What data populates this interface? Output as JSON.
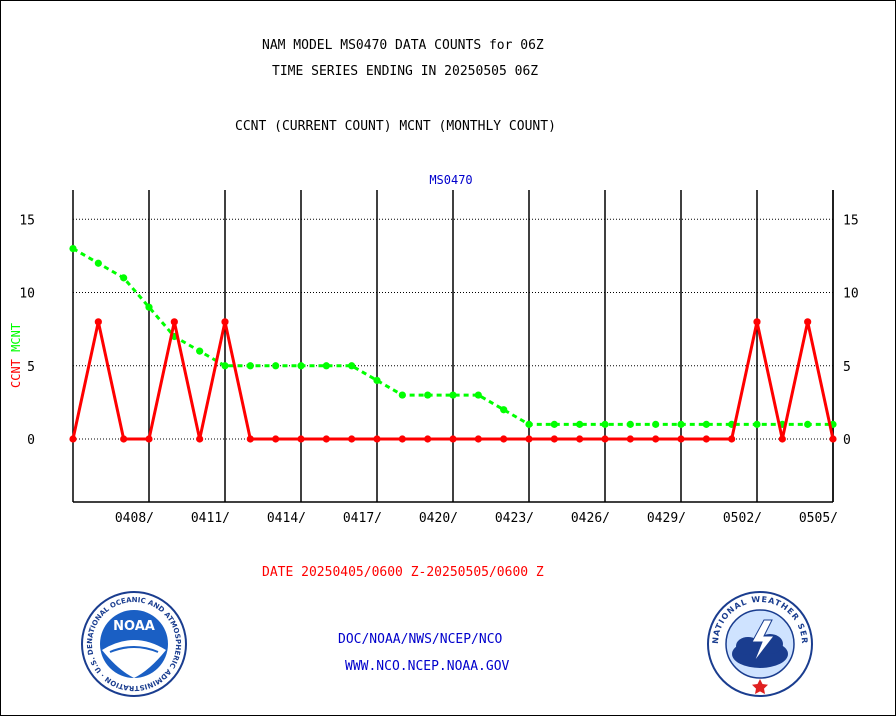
{
  "header": {
    "line1": "NAM MODEL MS0470 DATA COUNTS for 06Z",
    "line2": "TIME SERIES ENDING IN 20250505 06Z",
    "line3": "CCNT (CURRENT COUNT) MCNT (MONTHLY COUNT)"
  },
  "footer": {
    "date_range": "DATE 20250405/0600 Z-20250505/0600 Z",
    "org_path": "DOC/NOAA/NWS/NCEP/NCO",
    "website": "WWW.NCO.NCEP.NOAA.GOV"
  },
  "logos": {
    "noaa_text": "NOAA",
    "noaa_ring": "NATIONAL OCEANIC AND ATMOSPHERIC ADMINISTRATION · U.S. DEPARTMENT OF COMMERCE ·",
    "nws_ring": "NATIONAL WEATHER SERVICE"
  },
  "colors": {
    "ccnt": "#ff0000",
    "mcnt": "#00ff00",
    "station": "#0000cc",
    "footer_date": "#ff0000",
    "footer_links": "#0000cc"
  },
  "chart_data": {
    "type": "line",
    "title": "MS0470",
    "ylabel_series": [
      "CCNT",
      "MCNT"
    ],
    "ylim": [
      -4.3,
      17
    ],
    "yticks": [
      0,
      5,
      10,
      15
    ],
    "xlim": [
      0,
      30
    ],
    "x_tick_labels": [
      "0408/",
      "0411/",
      "0414/",
      "0417/",
      "0420/",
      "0423/",
      "0426/",
      "0429/",
      "0502/",
      "0505/"
    ],
    "x_tick_days": [
      3,
      6,
      9,
      12,
      15,
      18,
      21,
      24,
      27,
      30
    ],
    "grid": true,
    "series": [
      {
        "name": "CCNT",
        "style": "solid",
        "x": [
          0,
          1,
          2,
          3,
          4,
          5,
          6,
          7,
          8,
          9,
          10,
          11,
          12,
          13,
          14,
          15,
          16,
          17,
          18,
          19,
          20,
          21,
          22,
          23,
          24,
          25,
          26,
          27,
          28,
          29,
          30
        ],
        "values": [
          0,
          8,
          0,
          0,
          8,
          0,
          8,
          0,
          0,
          0,
          0,
          0,
          0,
          0,
          0,
          0,
          0,
          0,
          0,
          0,
          0,
          0,
          0,
          0,
          0,
          0,
          0,
          8,
          0,
          8,
          0
        ]
      },
      {
        "name": "MCNT",
        "style": "dashed",
        "x": [
          0,
          1,
          2,
          3,
          4,
          5,
          6,
          7,
          8,
          9,
          10,
          11,
          12,
          13,
          14,
          15,
          16,
          17,
          18,
          19,
          20,
          21,
          22,
          23,
          24,
          25,
          26,
          27,
          28,
          29,
          30
        ],
        "values": [
          13,
          12,
          11,
          9,
          7,
          6,
          5,
          5,
          5,
          5,
          5,
          5,
          4,
          3,
          3,
          3,
          3,
          2,
          1,
          1,
          1,
          1,
          1,
          1,
          1,
          1,
          1,
          1,
          1,
          1,
          1
        ]
      }
    ]
  }
}
